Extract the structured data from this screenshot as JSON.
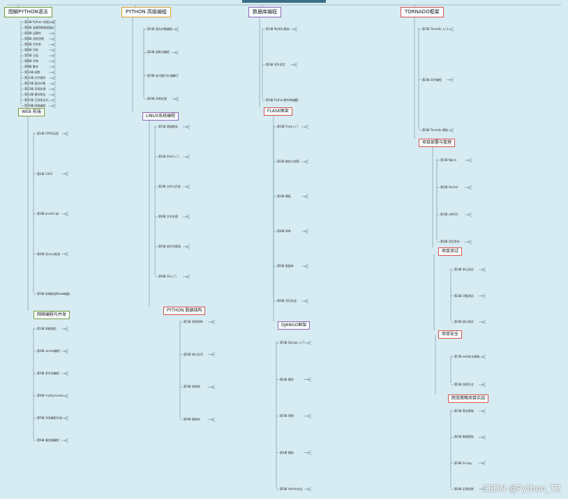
{
  "colors": {
    "red": "#d9534f",
    "purple": "#8e67b4",
    "orange": "#e39b2b",
    "green": "#7a9a3a",
    "line": "#6e8d99"
  },
  "top_branches": [
    {
      "label": "图解PYTHON语法",
      "color": "#7a9a3a"
    },
    {
      "label": "PYTHON 高级编程",
      "color": "#e39b2b"
    },
    {
      "label": "数据库编程",
      "color": "#8e67b4"
    },
    {
      "label": "TORNADO框架",
      "color": "#d9534f"
    }
  ],
  "categories": [
    {
      "label": "WEB 前端",
      "color": "#7a9a3a"
    },
    {
      "label": "网络编程与并发",
      "color": "#7a9a3a"
    },
    {
      "label": "LINUX系统编程",
      "color": "#8e67b4"
    },
    {
      "label": "PYTHON 数据结构",
      "color": "#d9534f"
    },
    {
      "label": "FLASK框架",
      "color": "#d9534f"
    },
    {
      "label": "DJANGO框架",
      "color": "#8e67b4"
    },
    {
      "label": "项目部署与管理",
      "color": "#d9534f"
    },
    {
      "label": "项目测试",
      "color": "#d9534f"
    },
    {
      "label": "项目安全",
      "color": "#d9534f"
    },
    {
      "label": "爬虫策略项目实战",
      "color": "#d9534f"
    }
  ],
  "sections": {
    "syntax": [
      "第1章 Python 快速入门",
      "第2章 变量和数据类型",
      "第3章 运算符",
      "第4章 流程控制",
      "第5章 字符串",
      "第6章 列表",
      "第7章 元组",
      "第8章 字典",
      "第9章 集合",
      "第10章 函数",
      "第11章 文件操作",
      "第12章 面向对象",
      "第13章 异常处理",
      "第14章 模块和包",
      "第15章 正则表达式",
      "第16章 网络编程"
    ],
    "web": [
      "第1章 HTML标签",
      "第2章 CSS3",
      "第3章 JavaScript",
      "第4章 jQuery框架",
      "第5章 前端框架Bootstrap"
    ],
    "net": [
      "第1章 网络通信",
      "第2章 socket编程",
      "第3章 多任务编程",
      "第4章 multiprocess",
      "第5章 并发编程实战",
      "第6章 服务器编程"
    ],
    "adv": [
      "第1章 面向对象编程",
      "第2章 函数式编程",
      "第3章 迭代器与生成器",
      "第4章 异常处理"
    ],
    "linux": [
      "第1章 基础概念",
      "第2章 Shell入门",
      "第3章 文件与目录",
      "第4章 文本处理",
      "第5章 软件包管理",
      "第6章 Git入门"
    ],
    "ds": [
      "第1章 线性结构",
      "第2章 栈与队列",
      "第3章 树结构",
      "第4章 图结构"
    ],
    "db": [
      "第1章 MySQL基础",
      "第2章 SQL语言",
      "第3章 Python操作MySQL"
    ],
    "flask": [
      "第1章 Flask入门",
      "第2章 路由与视图",
      "第3章 模板",
      "第4章 表单",
      "第5章 数据库",
      "第6章 项目实战"
    ],
    "django": [
      "第1章 Django 入门",
      "第2章 模型",
      "第3章 视图",
      "第4章 模板",
      "第5章 Admin站点"
    ],
    "tornado": [
      "第1章 Tornado 入门",
      "第2章 异步编程",
      "第3章 Tornado 模板"
    ],
    "deploy": [
      "第1章 Nginx",
      "第2章 Docker",
      "第3章 uWSGI",
      "第4章 项目发布"
    ],
    "test": [
      "第1章 单元测试",
      "第2章 功能测试",
      "第3章 接口测试"
    ],
    "security": [
      "第1章 web安全基础",
      "第2章 加密方式"
    ],
    "crawl": [
      "第1章 爬虫基础",
      "第2章 数据提取",
      "第3章 Scrapy",
      "第4章 反爬机制"
    ]
  },
  "watermark": "CSDN @Python_TZ"
}
